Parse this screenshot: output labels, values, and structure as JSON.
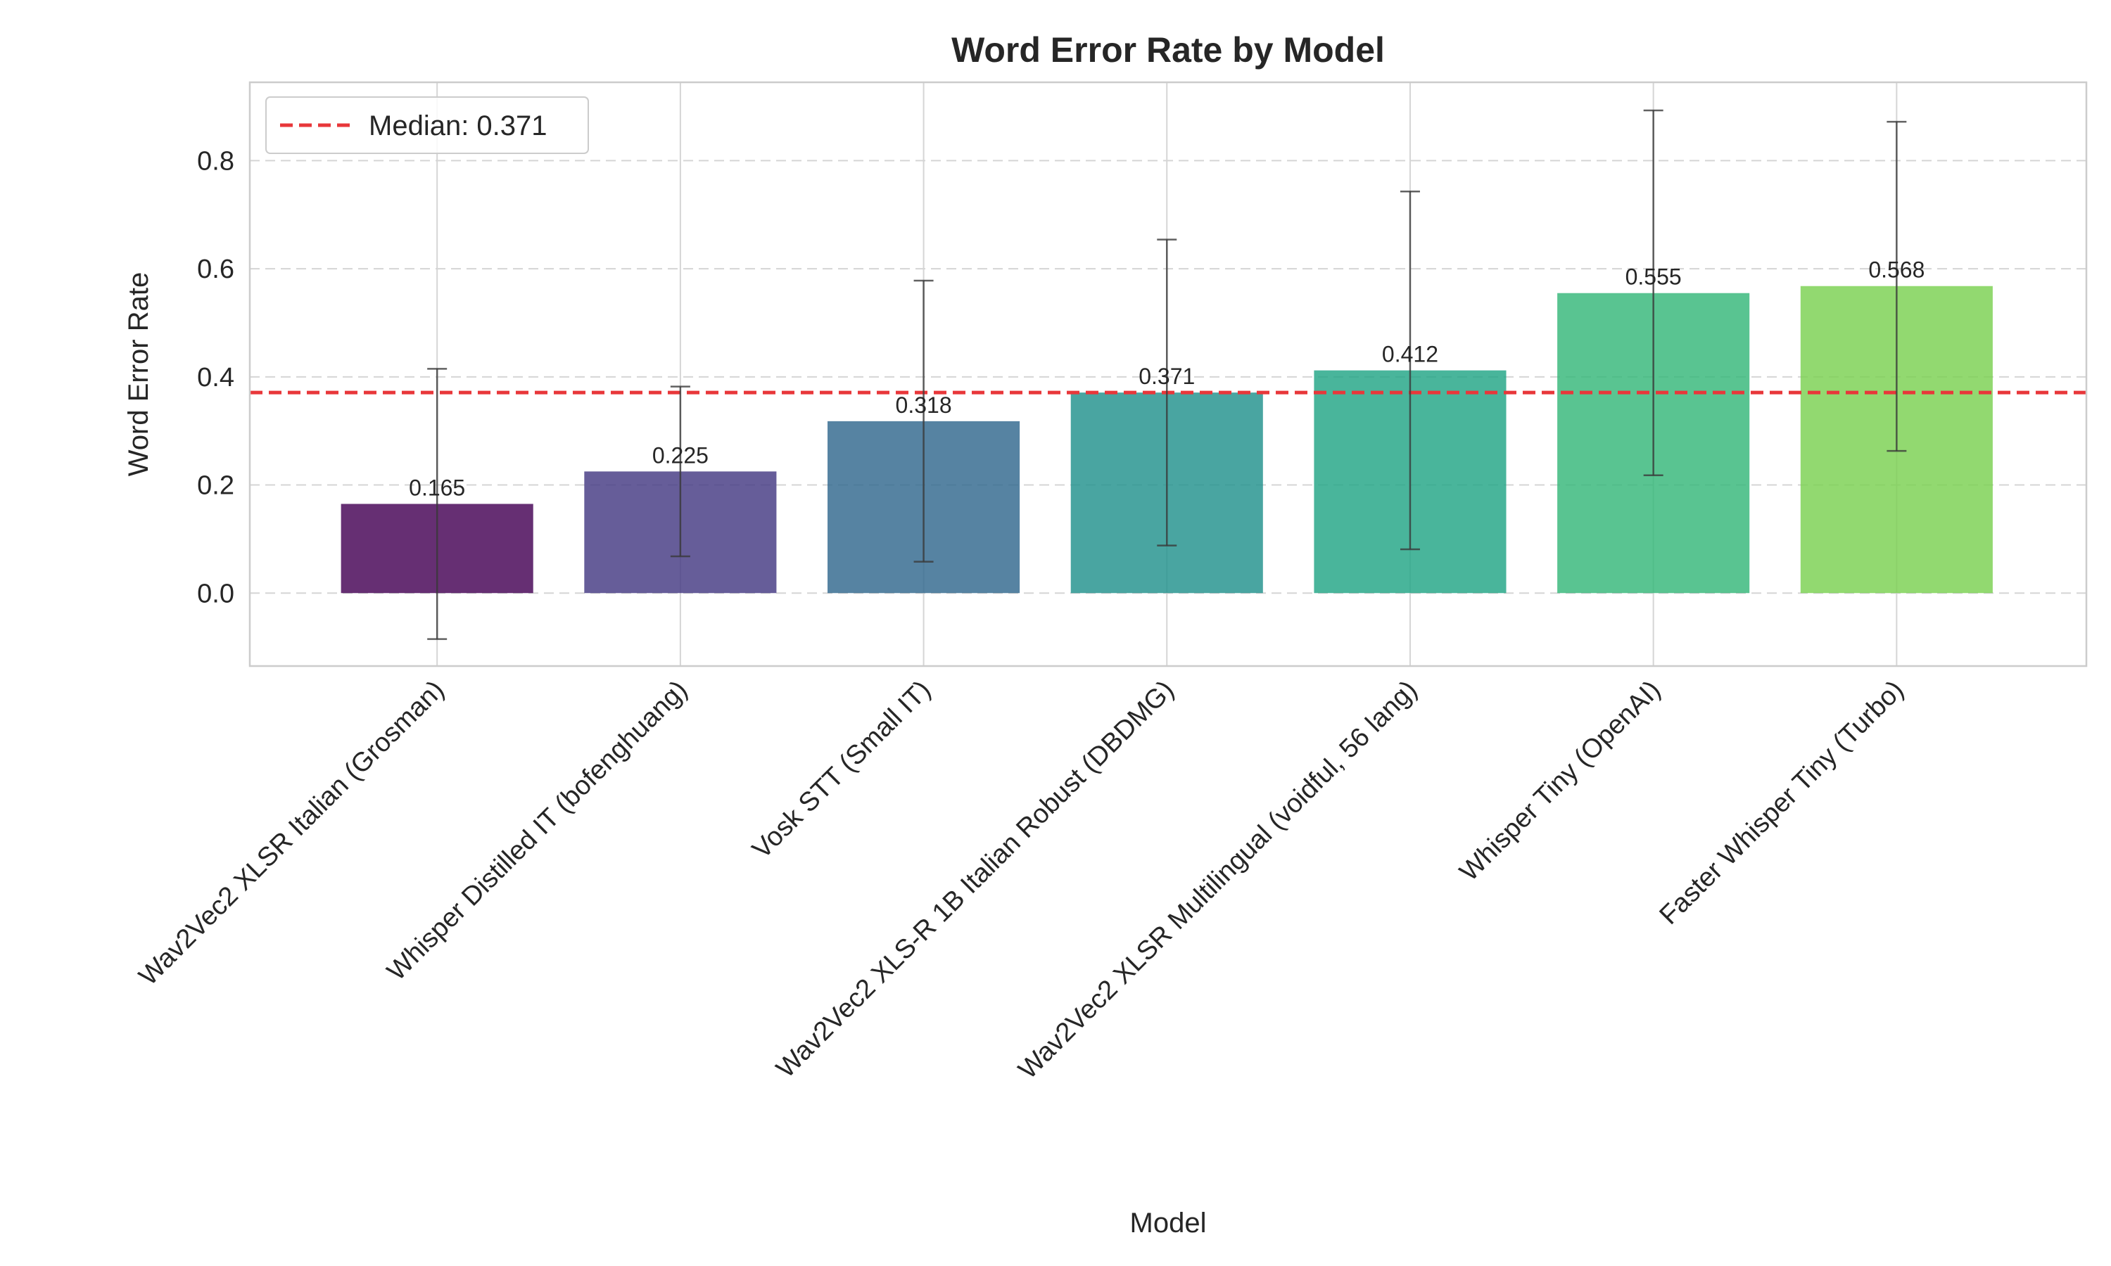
{
  "chart_data": {
    "type": "bar",
    "title": "Word Error Rate by Model",
    "xlabel": "Model",
    "ylabel": "Word Error Rate",
    "categories": [
      "Wav2Vec2 XLSR Italian (Grosman)",
      "Whisper Distilled IT (bofenghuang)",
      "Vosk STT (Small IT)",
      "Wav2Vec2 XLS-R 1B Italian Robust (DBDMG)",
      "Wav2Vec2 XLSR Multilingual (voidful, 56 lang)",
      "Whisper Tiny (OpenAI)",
      "Faster Whisper Tiny (Turbo)"
    ],
    "values": [
      0.165,
      0.225,
      0.318,
      0.371,
      0.412,
      0.555,
      0.568
    ],
    "value_labels": [
      "0.165",
      "0.225",
      "0.318",
      "0.371",
      "0.412",
      "0.555",
      "0.568"
    ],
    "error_bars": [
      [
        -0.085,
        0.415
      ],
      [
        0.068,
        0.382
      ],
      [
        0.058,
        0.578
      ],
      [
        0.088,
        0.654
      ],
      [
        0.081,
        0.743
      ],
      [
        0.218,
        0.893
      ],
      [
        0.263,
        0.872
      ]
    ],
    "colors": [
      "#440154",
      "#443983",
      "#31688e",
      "#21918c",
      "#35b779",
      "#35b779",
      "#90d743"
    ],
    "bar_colors": [
      "#440154",
      "#443983",
      "#31688e",
      "#21918c",
      "#21a585",
      "#35b779",
      "#7ad151"
    ],
    "median": 0.371,
    "median_color": "#e8373a",
    "legend": {
      "position": "top-left",
      "entries": [
        "Median: 0.371"
      ]
    },
    "ylim": [
      -0.135,
      0.945
    ],
    "yticks": [
      0.0,
      0.2,
      0.4,
      0.6,
      0.8
    ],
    "ytick_labels": [
      "0.0",
      "0.2",
      "0.4",
      "0.6",
      "0.8"
    ],
    "grid": true
  }
}
